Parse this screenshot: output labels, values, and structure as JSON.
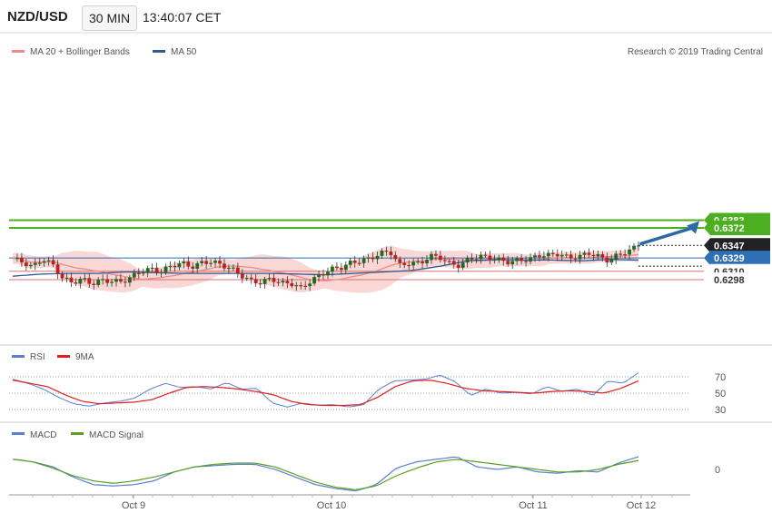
{
  "header": {
    "symbol": "NZD/USD",
    "timeframe": "30 MIN",
    "time": "13:40:07 CET"
  },
  "legend_main": {
    "ma20": {
      "label": "MA 20 + Bollinger Bands",
      "color": "#f08a8a"
    },
    "ma50": {
      "label": "MA 50",
      "color": "#2e5b95"
    }
  },
  "copyright": "Research © 2019 Trading Central",
  "levels": [
    {
      "value": 0.6383,
      "label": "0.6383",
      "kind": "target",
      "color": "#4caf20"
    },
    {
      "value": 0.6372,
      "label": "0.6372",
      "kind": "target",
      "color": "#4caf20"
    },
    {
      "value": 0.6347,
      "label": "0.6347",
      "kind": "last",
      "color": "#222222"
    },
    {
      "value": 0.6329,
      "label": "0.6329",
      "kind": "pivot",
      "color": "#2f6fb6"
    },
    {
      "value": 0.631,
      "label": "0.6310",
      "kind": "support",
      "color": "#e07070"
    },
    {
      "value": 0.6298,
      "label": "0.6298",
      "kind": "support",
      "color": "#e07070"
    }
  ],
  "rsi_legend": {
    "rsi": {
      "label": "RSI",
      "color": "#5b7fd6"
    },
    "ma": {
      "label": "9MA",
      "color": "#e02020"
    }
  },
  "rsi_ticks": [
    "70",
    "50",
    "30"
  ],
  "macd_legend": {
    "macd": {
      "label": "MACD",
      "color": "#5b7fd6"
    },
    "signal": {
      "label": "MACD Signal",
      "color": "#5aa020"
    }
  },
  "macd_ticks": [
    "0"
  ],
  "x_labels": [
    "Oct 9",
    "Oct 10",
    "Oct 11",
    "Oct 12"
  ],
  "chart_data": {
    "type": "candlestick",
    "main_path": [
      0.6328,
      0.6323,
      0.6316,
      0.6328,
      0.632,
      0.63,
      0.6294,
      0.6299,
      0.6292,
      0.6297,
      0.6296,
      0.6295,
      0.6302,
      0.6311,
      0.6313,
      0.631,
      0.6318,
      0.6322,
      0.6316,
      0.6322,
      0.6324,
      0.6319,
      0.6314,
      0.6304,
      0.6296,
      0.6294,
      0.63,
      0.6293,
      0.6293,
      0.6286,
      0.6296,
      0.6305,
      0.6313,
      0.6315,
      0.6322,
      0.6325,
      0.6328,
      0.6336,
      0.6338,
      0.6318,
      0.6322,
      0.6321,
      0.6332,
      0.633,
      0.6321,
      0.6318,
      0.6328,
      0.6331,
      0.633,
      0.6326,
      0.6323,
      0.6326,
      0.6327,
      0.6333,
      0.6333,
      0.6335,
      0.6329,
      0.6331,
      0.6336,
      0.6331,
      0.6325,
      0.6334,
      0.6339,
      0.6347
    ],
    "ma50_path": [
      0.6303,
      0.6306,
      0.6307,
      0.6307,
      0.6309,
      0.6308,
      0.6307,
      0.6307,
      0.6307,
      0.6307,
      0.6306,
      0.6305,
      0.6307,
      0.6309,
      0.6311,
      0.6317,
      0.6325,
      0.6327,
      0.6326,
      0.6326,
      0.6325,
      0.6327,
      0.6326
    ],
    "rsi_path": [
      67,
      62,
      55,
      45,
      37,
      34,
      38,
      40,
      44,
      55,
      62,
      57,
      58,
      55,
      63,
      55,
      56,
      38,
      33,
      38,
      35,
      36,
      33,
      36,
      55,
      65,
      66,
      67,
      72,
      64,
      47,
      55,
      50,
      51,
      49,
      58,
      52,
      55,
      47,
      65,
      62,
      75
    ],
    "rsi_ma_path": [
      66,
      62,
      58,
      48,
      40,
      37,
      38,
      39,
      42,
      50,
      57,
      58,
      57,
      55,
      52,
      48,
      40,
      36,
      35,
      35,
      36,
      45,
      58,
      65,
      66,
      62,
      56,
      53,
      52,
      51,
      50,
      52,
      53,
      52,
      50,
      56,
      65
    ],
    "macd_path": [
      0.0008,
      0.0006,
      0.0002,
      -0.0006,
      -0.0012,
      -0.0013,
      -0.0012,
      -0.0009,
      -0.0002,
      0.0002,
      0.0003,
      0.0004,
      0.0004,
      0.0,
      -0.0006,
      -0.0012,
      -0.0015,
      -0.0017,
      -0.0012,
      0.0001,
      0.0006,
      0.0008,
      0.001,
      0.0002,
      0.0,
      0.0002,
      -0.0002,
      -0.0003,
      -0.0001,
      -0.0002,
      0.0005,
      0.001
    ],
    "signal_path": [
      0.0008,
      0.0006,
      0.0001,
      -0.0005,
      -0.0009,
      -0.0011,
      -0.0009,
      -0.0006,
      -0.0002,
      0.0002,
      0.0004,
      0.0005,
      0.0005,
      0.0002,
      -0.0004,
      -0.001,
      -0.0014,
      -0.0016,
      -0.0013,
      -0.0005,
      0.0001,
      0.0006,
      0.0008,
      0.0006,
      0.0004,
      0.0002,
      0.0,
      -0.0002,
      -0.0002,
      0.0,
      0.0004,
      0.0007
    ],
    "forecast": {
      "from": 0.6347,
      "to": 0.6383,
      "color": "#2c6aa6"
    }
  }
}
